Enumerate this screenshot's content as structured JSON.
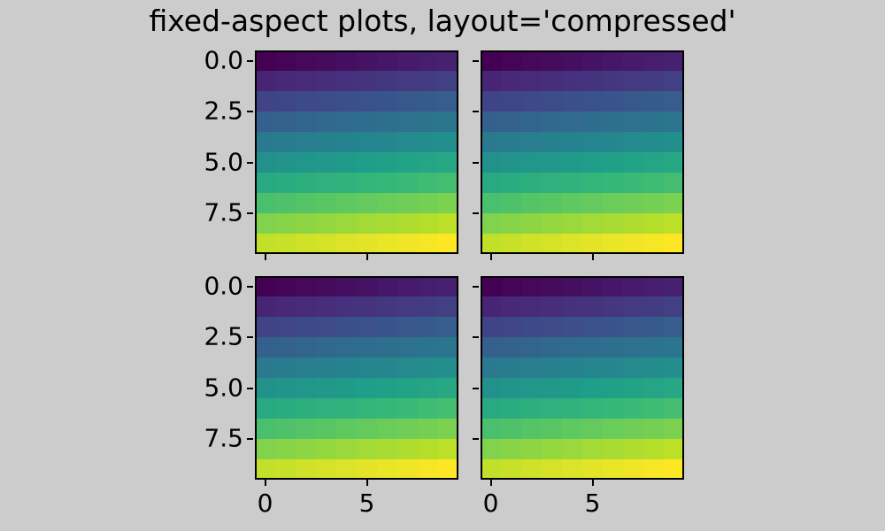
{
  "figure": {
    "background_color": "#cccccc",
    "text_color": "#000000",
    "spine_color": "#000000"
  },
  "chart_data": {
    "type": "heatmap",
    "title": "fixed-aspect plots, layout='compressed'",
    "layout": "compressed",
    "grid_shape": "2x2 subplots, each a 10x10 image with fixed (equal) aspect",
    "colormap": "viridis",
    "colormap_stops": [
      "#440154",
      "#482878",
      "#3e4989",
      "#31688e",
      "#26828e",
      "#1f9e89",
      "#35b779",
      "#6ece58",
      "#b5de2b",
      "#fde725"
    ],
    "vmin": 0,
    "vmax": 99,
    "values": [
      [
        0,
        1,
        2,
        3,
        4,
        5,
        6,
        7,
        8,
        9
      ],
      [
        10,
        11,
        12,
        13,
        14,
        15,
        16,
        17,
        18,
        19
      ],
      [
        20,
        21,
        22,
        23,
        24,
        25,
        26,
        27,
        28,
        29
      ],
      [
        30,
        31,
        32,
        33,
        34,
        35,
        36,
        37,
        38,
        39
      ],
      [
        40,
        41,
        42,
        43,
        44,
        45,
        46,
        47,
        48,
        49
      ],
      [
        50,
        51,
        52,
        53,
        54,
        55,
        56,
        57,
        58,
        59
      ],
      [
        60,
        61,
        62,
        63,
        64,
        65,
        66,
        67,
        68,
        69
      ],
      [
        70,
        71,
        72,
        73,
        74,
        75,
        76,
        77,
        78,
        79
      ],
      [
        80,
        81,
        82,
        83,
        84,
        85,
        86,
        87,
        88,
        89
      ],
      [
        90,
        91,
        92,
        93,
        94,
        95,
        96,
        97,
        98,
        99
      ]
    ],
    "x_range": [
      -0.5,
      9.5
    ],
    "y_range": [
      -0.5,
      9.5
    ],
    "xticks": [
      0,
      5
    ],
    "yticks": [
      0.0,
      2.5,
      5.0,
      7.5
    ],
    "xticklabels": [
      "0",
      "5"
    ],
    "yticklabels": [
      "0.0",
      "2.5",
      "5.0",
      "7.5"
    ],
    "subplots": [
      {
        "id": "top-left",
        "show_xticklabels": false,
        "show_yticklabels": true
      },
      {
        "id": "top-right",
        "show_xticklabels": false,
        "show_yticklabels": false
      },
      {
        "id": "bottom-left",
        "show_xticklabels": true,
        "show_yticklabels": true
      },
      {
        "id": "bottom-right",
        "show_xticklabels": true,
        "show_yticklabels": false
      }
    ]
  }
}
